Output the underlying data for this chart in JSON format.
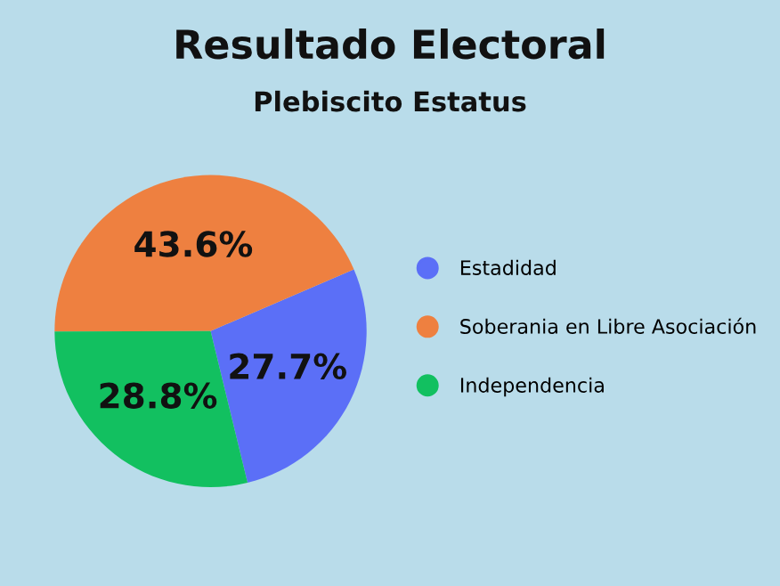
{
  "chart_data": {
    "type": "pie",
    "title": "Resultado Electoral",
    "subtitle": "Plebiscito Estatus",
    "categories": [
      "Estadidad",
      "Soberania en Libre Asociación",
      "Independencia"
    ],
    "values": [
      27.7,
      43.6,
      28.8
    ],
    "colors": [
      "#5b6ff7",
      "#ee8040",
      "#12c060"
    ],
    "value_labels": [
      "27.7%",
      "43.6%",
      "28.8%"
    ],
    "legend": "right"
  }
}
